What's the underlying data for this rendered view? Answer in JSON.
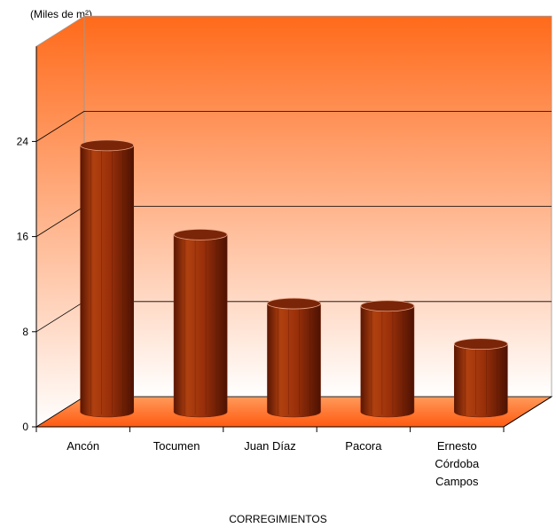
{
  "chart_data": {
    "type": "bar",
    "title": "",
    "unit_label": "(Miles de m²)",
    "xlabel": "CORREGIMIENTOS",
    "ylabel": "",
    "categories": [
      "Ancón",
      "Tocumen",
      "Juan Díaz",
      "Pacora",
      "Ernesto Córdoba Campos"
    ],
    "values": [
      22.4,
      14.9,
      9.1,
      8.9,
      5.7
    ],
    "ylim": [
      0,
      32
    ],
    "yticks": [
      0,
      8,
      16,
      24
    ],
    "grid": true,
    "three_d": true,
    "bar_shape": "cylinder",
    "colors": {
      "bar": "#a0330e",
      "bar_dark": "#6e1e05",
      "bar_top": "#7a2508",
      "wall_top": "#ff6a1a",
      "wall_bottom": "#ffffff",
      "floor": "#ff7a2a"
    }
  }
}
